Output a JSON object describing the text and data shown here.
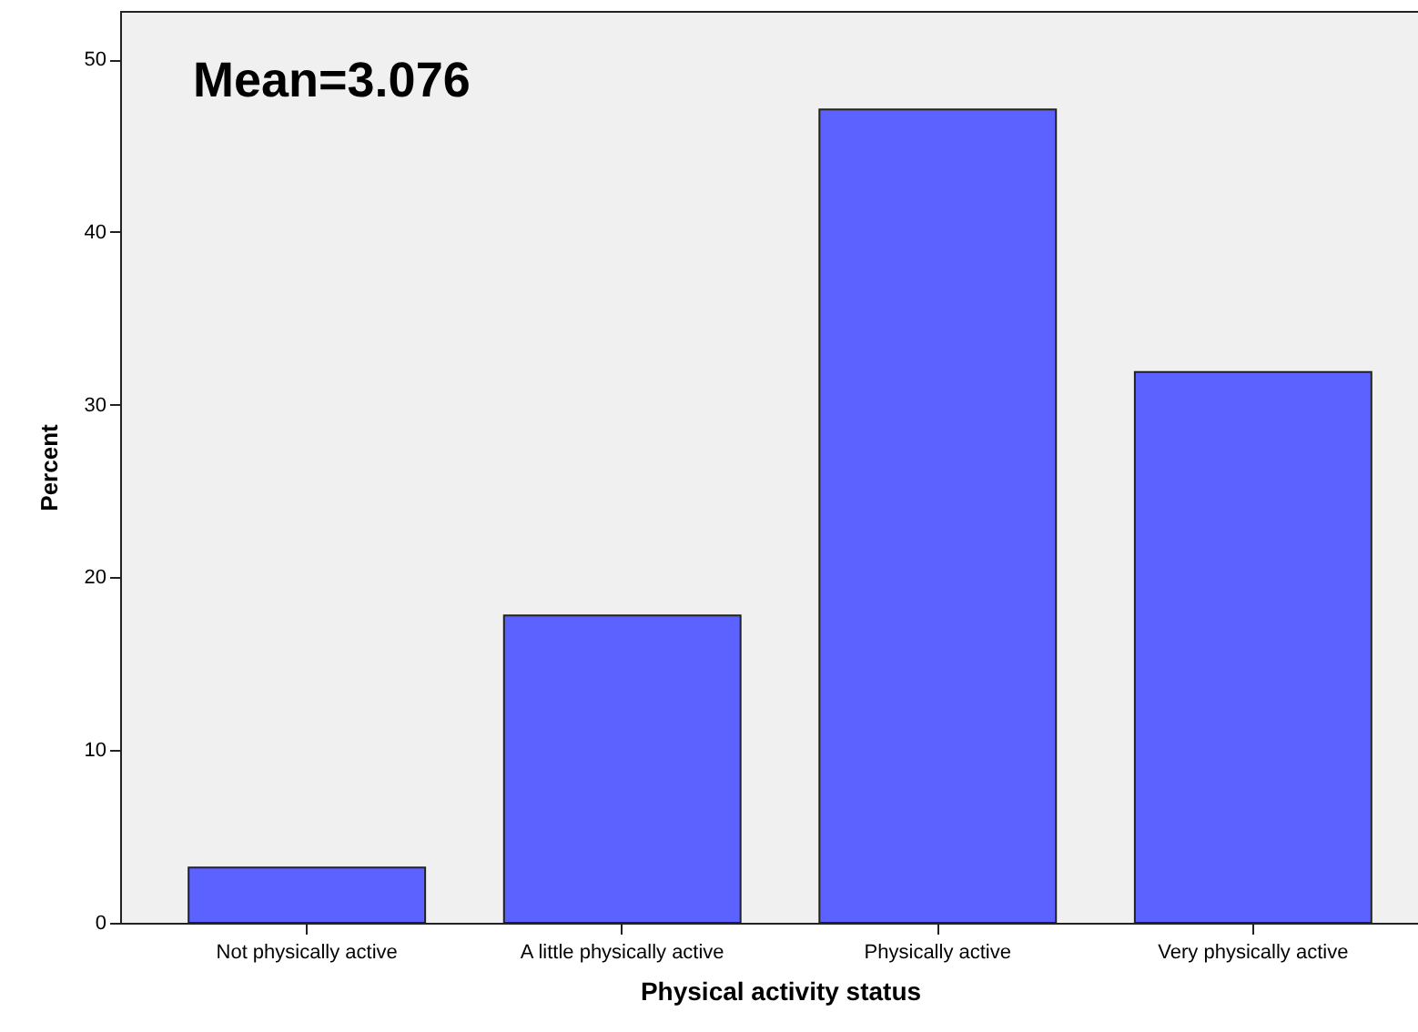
{
  "chart_data": {
    "type": "bar",
    "xlabel": "Physical activity status",
    "ylabel": "Percent",
    "categories": [
      "Not physically active",
      "A little physically active",
      "Physically active",
      "Very physically active"
    ],
    "values": [
      3.2,
      17.8,
      47.1,
      31.9
    ],
    "color": "#5b62ff",
    "ylim": [
      0,
      52.8
    ],
    "yticks": [
      0,
      10,
      20,
      30,
      40,
      50
    ],
    "annotations": [
      "Mean=3.076"
    ]
  }
}
